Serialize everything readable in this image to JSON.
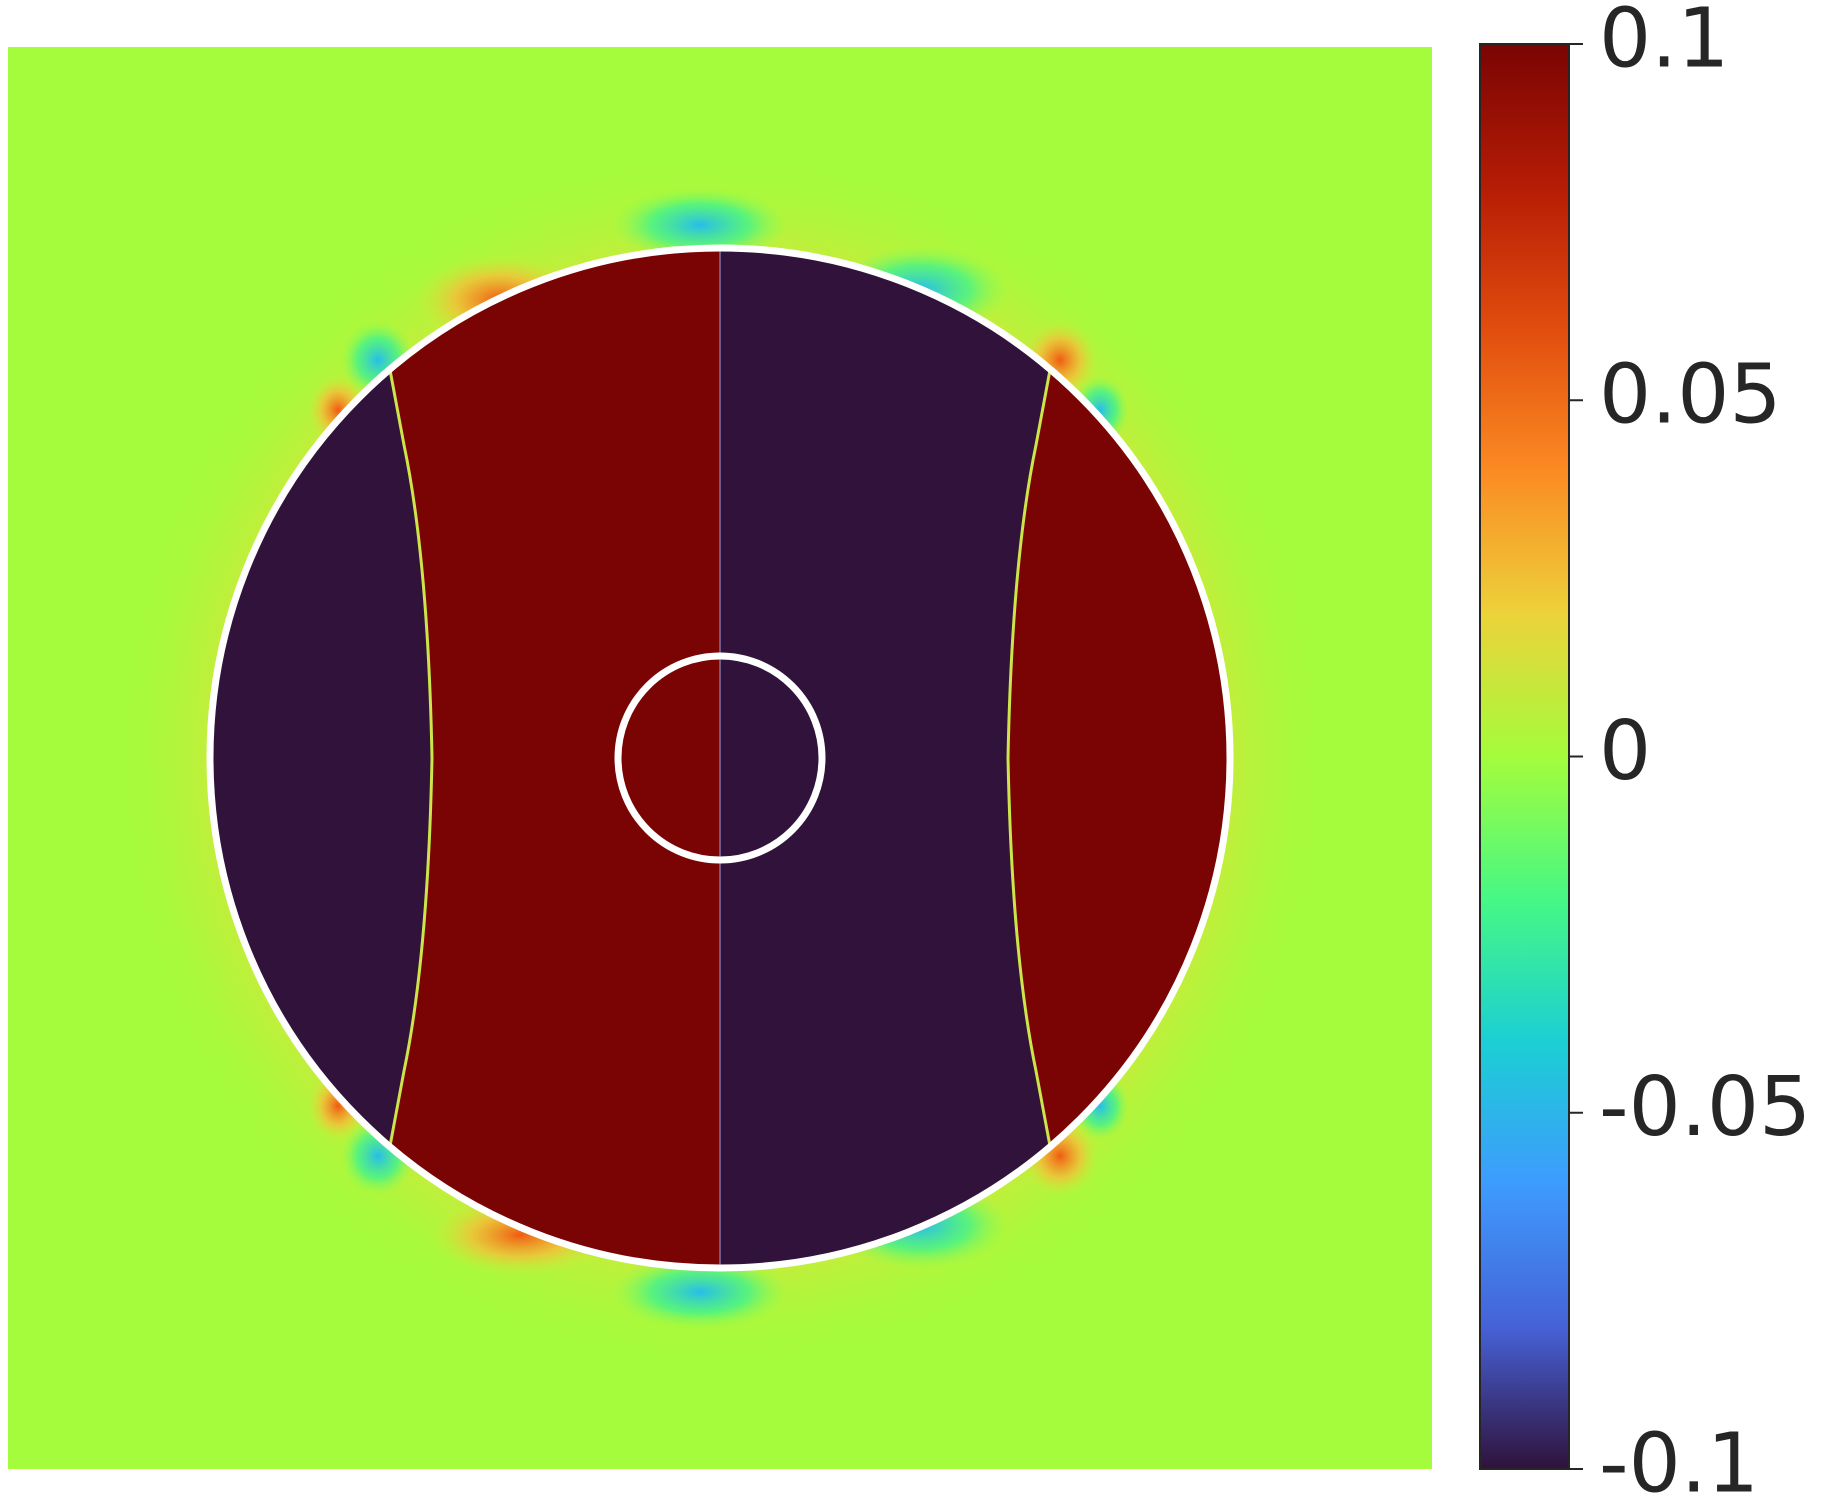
{
  "chart_data": {
    "type": "heatmap",
    "title": "",
    "xlabel": "",
    "ylabel": "",
    "colormap": "turbo",
    "colorbar": {
      "placement": "right",
      "range": [
        -0.1,
        0.1
      ],
      "ticks": [
        0.1,
        0.05,
        0,
        -0.05,
        -0.1
      ],
      "tick_labels": [
        "0.1",
        "0.05",
        "0",
        "-0.05",
        "-0.1"
      ]
    },
    "field": {
      "background_value": 0,
      "regions": [
        {
          "name": "outer-left-segment",
          "value": -0.1
        },
        {
          "name": "inner-left-band",
          "value": 0.1
        },
        {
          "name": "inner-right-band",
          "value": -0.1
        },
        {
          "name": "outer-right-segment",
          "value": 0.1
        }
      ],
      "boundaries": [
        "outer-circle",
        "inner-circle"
      ]
    },
    "colors": {
      "high": "#7a0403",
      "low": "#30123b",
      "zero": "#a4fc3c",
      "boundary": "#ffffff"
    }
  }
}
